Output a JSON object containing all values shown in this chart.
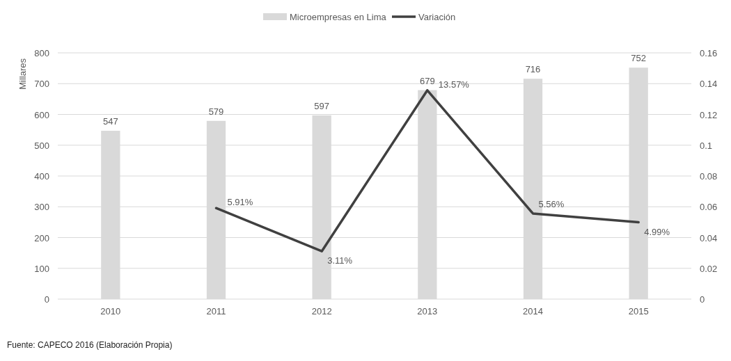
{
  "chart_data": {
    "type": "bar",
    "ylabel": "Millares",
    "categories": [
      "2010",
      "2011",
      "2012",
      "2013",
      "2014",
      "2015"
    ],
    "series": [
      {
        "name": "Microempresas en Lima",
        "color": "#d9d9d9",
        "values": [
          547,
          579,
          597,
          679,
          716,
          752
        ],
        "value_labels": [
          "547",
          "579",
          "597",
          "679",
          "716",
          "752"
        ]
      },
      {
        "name": "Variación",
        "type": "line",
        "axis": "y2",
        "color": "#404040",
        "values": [
          null,
          0.0591,
          0.0311,
          0.1357,
          0.0556,
          0.0499
        ],
        "value_labels": [
          null,
          "5.91%",
          "3.11%",
          "13.57%",
          "5.56%",
          "4.99%"
        ]
      }
    ],
    "ylim": [
      0,
      800
    ],
    "yticks": [
      0,
      100,
      200,
      300,
      400,
      500,
      600,
      700,
      800
    ],
    "y2lim": [
      0,
      0.16
    ],
    "y2ticks": [
      0,
      0.02,
      0.04,
      0.06,
      0.08,
      0.1,
      0.12,
      0.14,
      0.16
    ],
    "grid": "y",
    "legend": "top",
    "marker": "none",
    "line_style": "solid",
    "annotations": [
      "Fuente: CAPECO 2016 (Elaboración Propia)"
    ]
  }
}
